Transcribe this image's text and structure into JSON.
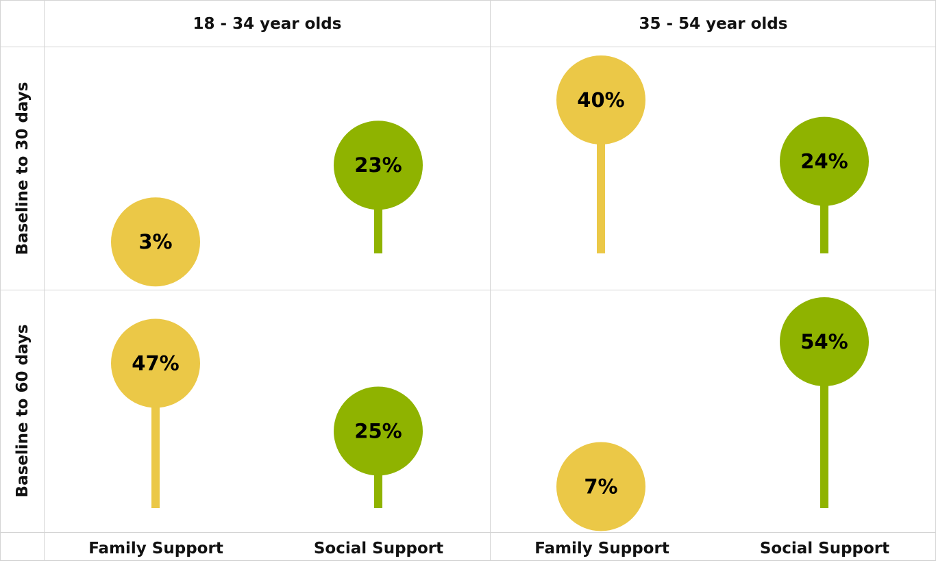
{
  "chart_data": {
    "type": "lollipop",
    "columns": [
      "18 - 34 year olds",
      "35 - 54 year olds"
    ],
    "rows": [
      "Baseline to 30 days",
      "Baseline to 60 days"
    ],
    "categories": [
      "Family Support",
      "Social Support"
    ],
    "colors": {
      "Family Support": "#EBC847",
      "Social Support": "#8FB300"
    },
    "values": {
      "Baseline to 30 days": {
        "18 - 34 year olds": {
          "Family Support": 3,
          "Social Support": 23
        },
        "35 - 54 year olds": {
          "Family Support": 40,
          "Social Support": 24
        }
      },
      "Baseline to 60 days": {
        "18 - 34 year olds": {
          "Family Support": 47,
          "Social Support": 25
        },
        "35 - 54 year olds": {
          "Family Support": 7,
          "Social Support": 54
        }
      }
    },
    "labels": {
      "Baseline to 30 days": {
        "18 - 34 year olds": {
          "Family Support": "3%",
          "Social Support": "23%"
        },
        "35 - 54 year olds": {
          "Family Support": "40%",
          "Social Support": "24%"
        }
      },
      "Baseline to 60 days": {
        "18 - 34 year olds": {
          "Family Support": "47%",
          "Social Support": "25%"
        },
        "35 - 54 year olds": {
          "Family Support": "7%",
          "Social Support": "54%"
        }
      }
    },
    "grid": false
  }
}
